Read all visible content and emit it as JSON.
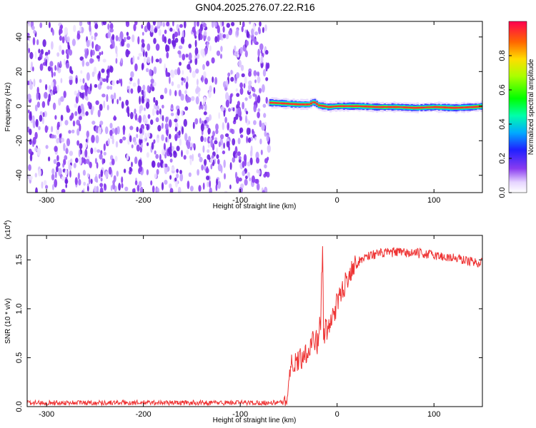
{
  "title": "GN04.2025.276.07.22.R16",
  "chart_data": [
    {
      "type": "heatmap",
      "xlabel": "Height of straight line (km)",
      "ylabel": "Frequency (Hz)",
      "xlim": [
        -320,
        150
      ],
      "ylim": [
        -50,
        49
      ],
      "x_ticks": [
        -300,
        -200,
        -100,
        0,
        100
      ],
      "x_tick_labels": [
        "-300",
        "-200",
        "-100",
        "0",
        "100"
      ],
      "y_ticks": [
        -40,
        -20,
        0,
        20,
        40
      ],
      "y_tick_labels": [
        "-40",
        "-20",
        "0",
        "20",
        "40"
      ],
      "noise_region_x": [
        -320,
        -70
      ],
      "signal_track": {
        "x": [
          -70,
          -55,
          -40,
          -30,
          -25,
          -20,
          -10,
          0,
          20,
          40,
          60,
          80,
          100,
          120,
          140,
          150
        ],
        "freq": [
          2,
          1.5,
          1,
          1,
          2.5,
          0.5,
          -0.5,
          0,
          0,
          -0.5,
          -0.5,
          -1,
          -0.5,
          -1,
          -0.5,
          0
        ]
      },
      "colorbar": {
        "label": "Normalized spectral amplitude",
        "range": [
          0,
          1
        ],
        "ticks": [
          0.0,
          0.2,
          0.4,
          0.6,
          0.8
        ],
        "tick_labels": [
          "0.0",
          "0.2",
          "0.4",
          "0.6",
          "0.8"
        ]
      }
    },
    {
      "type": "line",
      "xlabel": "Height of straight line (km)",
      "ylabel": "SNR (10 * v/v)",
      "multiplier_base": "(x10",
      "multiplier_exp": "4",
      "multiplier_close": ")",
      "xlim": [
        -320,
        150
      ],
      "ylim": [
        0,
        1.75
      ],
      "x_ticks": [
        -300,
        -200,
        -100,
        0,
        100
      ],
      "x_tick_labels": [
        "-300",
        "-200",
        "-100",
        "0",
        "100"
      ],
      "y_ticks": [
        0.0,
        0.5,
        1.0,
        1.5
      ],
      "y_tick_labels": [
        "0.0",
        "0.5",
        "1.0",
        "1.5"
      ],
      "series": [
        {
          "name": "SNR",
          "color": "#ee3333",
          "x": [
            -320,
            -200,
            -100,
            -55,
            -52,
            -48,
            -45,
            -40,
            -35,
            -30,
            -25,
            -20,
            -17,
            -15,
            -14,
            -12,
            -10,
            -5,
            0,
            5,
            10,
            15,
            20,
            25,
            30,
            40,
            50,
            60,
            70,
            80,
            90,
            100,
            110,
            120,
            130,
            140,
            150
          ],
          "y": [
            0.04,
            0.04,
            0.04,
            0.04,
            0.12,
            0.4,
            0.45,
            0.48,
            0.52,
            0.58,
            0.7,
            0.65,
            0.9,
            1.62,
            0.7,
            0.8,
            0.75,
            0.92,
            1.05,
            1.18,
            1.3,
            1.42,
            1.46,
            1.5,
            1.54,
            1.56,
            1.57,
            1.58,
            1.57,
            1.57,
            1.56,
            1.55,
            1.53,
            1.52,
            1.5,
            1.48,
            1.47
          ]
        }
      ]
    }
  ]
}
